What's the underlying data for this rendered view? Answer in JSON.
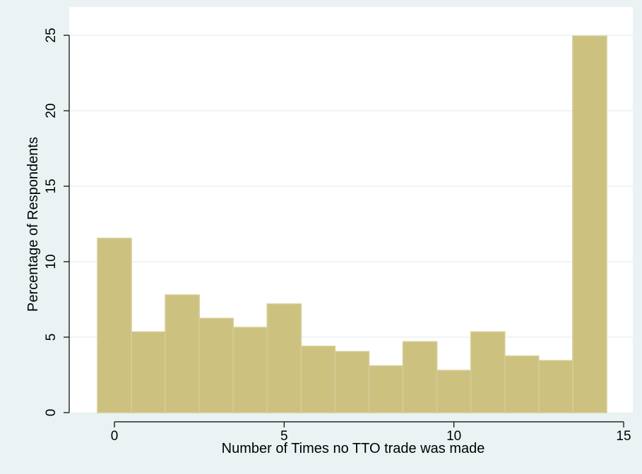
{
  "chart_data": {
    "type": "bar",
    "title": "",
    "xlabel": "Number of Times no TTO trade was made",
    "ylabel": "Percentage of Respondents",
    "xlim": [
      -1.5,
      15.5
    ],
    "ylim": [
      0,
      25
    ],
    "xticks": [
      0,
      5,
      10,
      15
    ],
    "yticks": [
      0,
      5,
      10,
      15,
      20,
      25
    ],
    "xtick_labels": [
      "0",
      "5",
      "10",
      "15"
    ],
    "ytick_labels": [
      "0",
      "5",
      "10",
      "15",
      "20",
      "25"
    ],
    "grid": "horizontal",
    "bar_width": 1,
    "categories": [
      0,
      1,
      2,
      3,
      4,
      5,
      6,
      7,
      8,
      9,
      10,
      11,
      12,
      13,
      14
    ],
    "values": [
      11.55,
      5.35,
      7.8,
      6.25,
      5.65,
      7.2,
      4.4,
      4.05,
      3.1,
      4.7,
      2.8,
      5.35,
      3.75,
      3.45,
      24.95
    ],
    "colors": {
      "bar_fill": "#cdc180",
      "bar_stroke": "#d6cc95",
      "plot_bg": "#ffffff",
      "outer_bg": "#eaf2f3",
      "grid": "#eaf2f3",
      "axis": "#000000"
    }
  }
}
